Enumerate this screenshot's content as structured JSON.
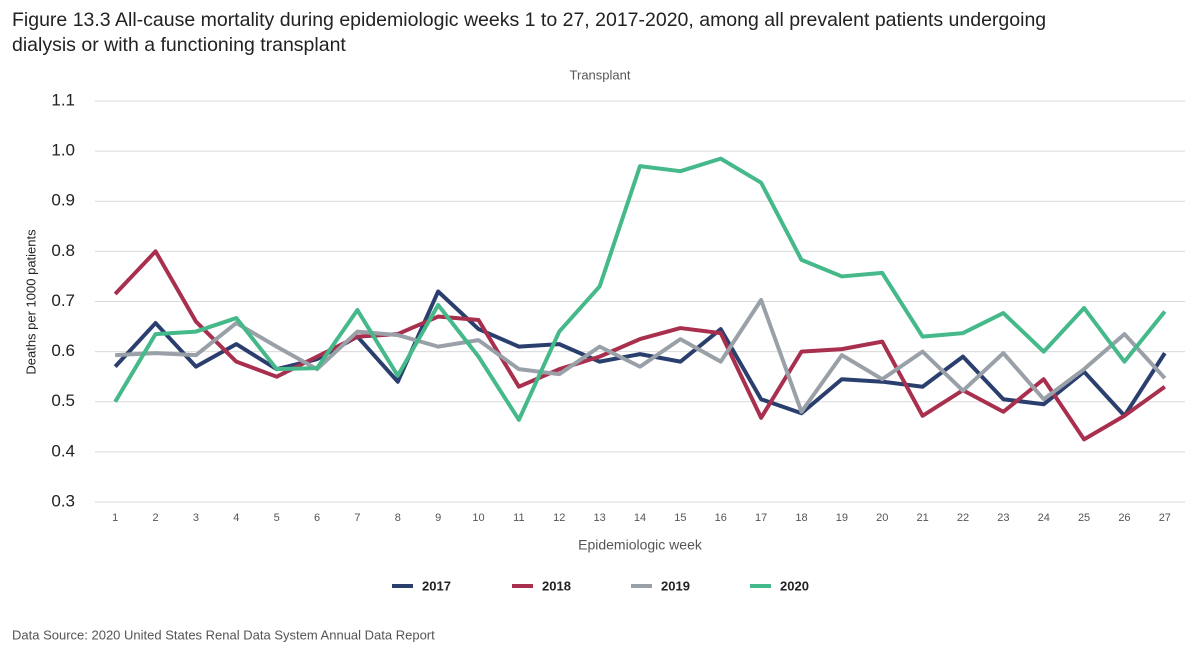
{
  "chart_data": {
    "type": "line",
    "title": "Figure 13.3 All-cause mortality during epidemiologic weeks 1 to 27, 2017-2020, among all prevalent patients undergoing dialysis or with a functioning transplant",
    "subtitle": "Transplant",
    "x_label": "Epidemiologic week",
    "y_label": "Deaths per 1000 patients",
    "source": "Data Source: 2020 United States Renal Data System Annual Data Report",
    "categories": [
      "1",
      "2",
      "3",
      "4",
      "5",
      "6",
      "7",
      "8",
      "9",
      "10",
      "11",
      "12",
      "13",
      "14",
      "15",
      "16",
      "17",
      "18",
      "19",
      "20",
      "21",
      "22",
      "23",
      "24",
      "25",
      "26",
      "27"
    ],
    "ylim": [
      0.3,
      1.1
    ],
    "yticks": [
      0.3,
      0.4,
      0.5,
      0.6,
      0.7,
      0.8,
      0.9,
      {
        "value": 1,
        "label": "1.0"
      },
      1.1
    ],
    "grid": true,
    "legend": "bottom",
    "series": [
      {
        "name": "2017",
        "color": "#2a3f6e",
        "values": [
          0.57,
          0.657,
          0.57,
          0.615,
          0.565,
          0.585,
          0.63,
          0.54,
          0.72,
          0.645,
          0.61,
          0.615,
          0.58,
          0.595,
          0.58,
          0.645,
          0.505,
          0.477,
          0.545,
          0.54,
          0.53,
          0.59,
          0.505,
          0.495,
          0.56,
          0.472,
          0.597
        ]
      },
      {
        "name": "2018",
        "color": "#a8304e",
        "values": [
          0.715,
          0.8,
          0.66,
          0.58,
          0.55,
          0.59,
          0.63,
          0.635,
          0.67,
          0.663,
          0.53,
          0.565,
          0.59,
          0.625,
          0.647,
          0.637,
          0.468,
          0.6,
          0.605,
          0.62,
          0.472,
          0.523,
          0.48,
          0.545,
          0.425,
          0.472,
          0.53
        ]
      },
      {
        "name": "2019",
        "color": "#9aa0a8",
        "values": [
          0.593,
          0.597,
          0.593,
          0.657,
          0.61,
          0.565,
          0.64,
          0.633,
          0.61,
          0.623,
          0.565,
          0.555,
          0.61,
          0.57,
          0.625,
          0.58,
          0.703,
          0.48,
          0.593,
          0.545,
          0.6,
          0.522,
          0.597,
          0.505,
          0.565,
          0.635,
          0.547
        ]
      },
      {
        "name": "2020",
        "color": "#45b98a",
        "values": [
          0.5,
          0.635,
          0.64,
          0.667,
          0.565,
          0.567,
          0.683,
          0.552,
          0.693,
          0.59,
          0.464,
          0.64,
          0.73,
          0.97,
          0.96,
          0.985,
          0.937,
          0.783,
          0.75,
          0.757,
          0.63,
          0.637,
          0.677,
          0.6,
          0.687,
          0.58,
          0.68
        ]
      }
    ]
  }
}
